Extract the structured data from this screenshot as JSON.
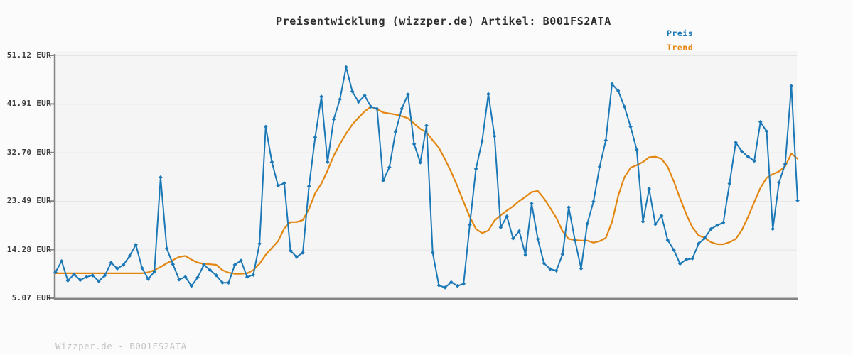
{
  "header": {
    "title": "Preisentwicklung (wizzper.de) Artikel: B001FS2ATA"
  },
  "legend": {
    "price_label": "Preis",
    "trend_label": "Trend"
  },
  "footer": {
    "text": "Wizzper.de - B001FS2ATA"
  },
  "colors": {
    "price": "#1b78b7",
    "trend": "#e2860f",
    "plot_background": "#f5f5f5",
    "gridline": "#e4e4e4",
    "axis": "#858585",
    "title_text": "#2e2e2e",
    "tick_text": "#3c3c3c",
    "footer_text": "#c4c4c4"
  },
  "chart_data": {
    "type": "line",
    "title": "Preisentwicklung (wizzper.de) Artikel: B001FS2ATA",
    "xlabel": "",
    "ylabel": "",
    "unit": "EUR",
    "ylim": [
      5.07,
      51.12
    ],
    "grid": true,
    "legend_position": "top-right",
    "x_axis_labels_visible": false,
    "y_ticks": [
      "51.12 EUR",
      "41.91 EUR",
      "32.70 EUR",
      "23.49 EUR",
      "14.28 EUR",
      "5.07 EUR"
    ],
    "y_tick_values": [
      51.12,
      41.91,
      32.7,
      23.49,
      14.28,
      5.07
    ],
    "series": [
      {
        "name": "Preis",
        "color": "#1b78b7",
        "marker": "diamond",
        "values": [
          10.0,
          12.1,
          8.4,
          9.6,
          8.5,
          9.1,
          9.4,
          8.3,
          9.4,
          11.8,
          10.7,
          11.4,
          13.1,
          15.2,
          10.8,
          8.7,
          10.1,
          28.0,
          14.5,
          11.5,
          8.6,
          9.1,
          7.4,
          9.0,
          11.4,
          10.4,
          9.4,
          8.0,
          8.0,
          11.4,
          12.2,
          9.1,
          9.5,
          15.4,
          37.6,
          30.9,
          26.4,
          26.9,
          14.1,
          12.9,
          13.7,
          26.3,
          35.6,
          43.3,
          30.9,
          39.0,
          42.8,
          48.9,
          44.3,
          42.3,
          43.5,
          41.4,
          41.0,
          27.4,
          29.9,
          36.6,
          41.0,
          43.7,
          34.3,
          30.8,
          37.8,
          13.7,
          7.5,
          7.1,
          8.1,
          7.4,
          7.8,
          19.0,
          29.6,
          34.9,
          43.8,
          35.8,
          18.5,
          20.6,
          16.4,
          17.8,
          13.3,
          23.0,
          16.3,
          11.7,
          10.6,
          10.3,
          13.4,
          22.3,
          16.1,
          10.7,
          19.2,
          23.4,
          30.0,
          35.0,
          45.7,
          44.4,
          41.4,
          37.6,
          33.2,
          19.6,
          25.8,
          19.1,
          20.7,
          16.1,
          14.2,
          11.6,
          12.4,
          12.6,
          15.4,
          16.5,
          18.2,
          18.9,
          19.4,
          26.8,
          34.6,
          32.9,
          31.9,
          31.1,
          38.5,
          36.7,
          18.2,
          27.0,
          30.5,
          45.3,
          23.6
        ]
      },
      {
        "name": "Trend",
        "color": "#e2860f",
        "marker": "none",
        "values": [
          9.8,
          9.8,
          9.8,
          9.8,
          9.8,
          9.8,
          9.8,
          9.8,
          9.8,
          9.8,
          9.8,
          9.8,
          9.8,
          9.8,
          9.8,
          10.0,
          10.4,
          11.0,
          11.7,
          12.3,
          12.9,
          13.1,
          12.4,
          11.8,
          11.6,
          11.5,
          11.4,
          10.4,
          9.9,
          9.7,
          9.7,
          9.8,
          10.4,
          11.6,
          13.3,
          14.6,
          15.9,
          18.3,
          19.5,
          19.5,
          19.9,
          22.0,
          25.0,
          26.8,
          29.3,
          32.1,
          34.3,
          36.3,
          38.0,
          39.3,
          40.5,
          41.4,
          40.9,
          40.3,
          40.1,
          39.9,
          39.6,
          39.2,
          38.2,
          37.2,
          36.5,
          35.0,
          33.6,
          31.4,
          29.0,
          26.3,
          23.3,
          20.5,
          18.2,
          17.4,
          17.9,
          19.8,
          20.8,
          21.7,
          22.5,
          23.5,
          24.3,
          25.2,
          25.4,
          24.0,
          22.2,
          20.3,
          17.8,
          16.3,
          16.1,
          16.0,
          16.0,
          15.6,
          15.9,
          16.5,
          19.5,
          24.5,
          28.0,
          29.8,
          30.3,
          30.9,
          31.8,
          31.9,
          31.5,
          30.0,
          27.2,
          24.0,
          21.0,
          18.5,
          17.0,
          16.5,
          15.7,
          15.3,
          15.3,
          15.7,
          16.3,
          18.0,
          20.5,
          23.3,
          26.0,
          27.9,
          28.6,
          29.1,
          30.1,
          32.5,
          31.5
        ]
      }
    ]
  }
}
